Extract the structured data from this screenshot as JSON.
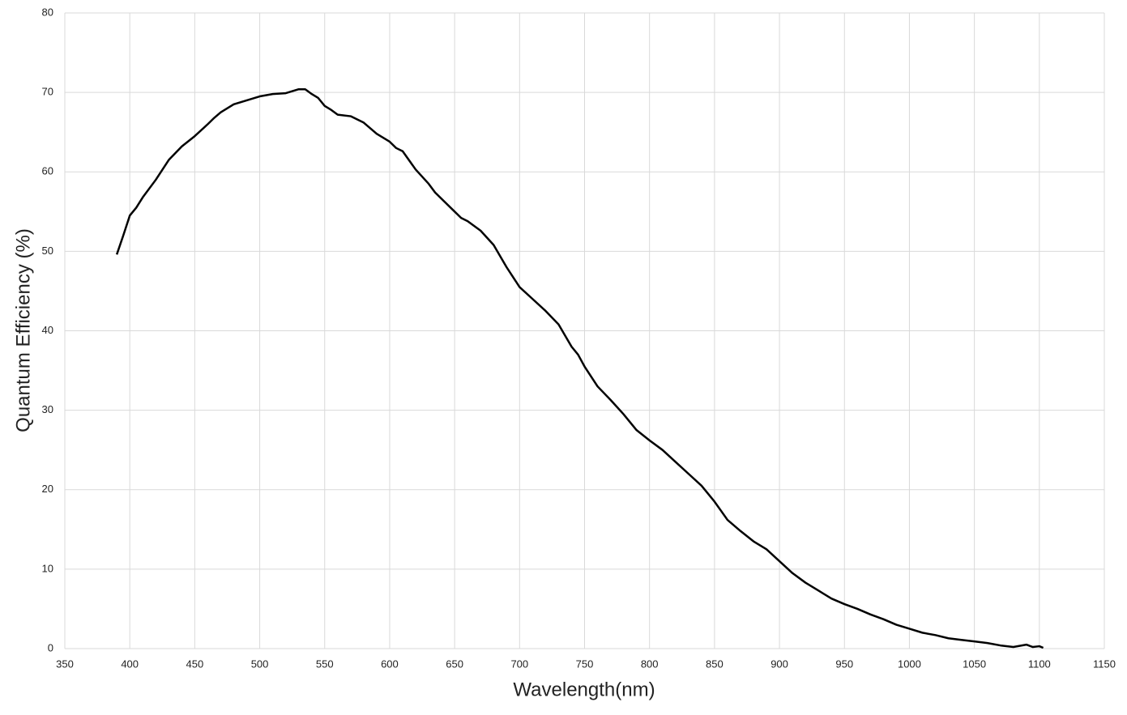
{
  "chart_data": {
    "type": "line",
    "x_label": "Wavelength(nm)",
    "y_label": "Quantum Efficiency (%)",
    "x": [
      390,
      395,
      400,
      405,
      410,
      420,
      430,
      440,
      450,
      460,
      465,
      470,
      480,
      490,
      500,
      510,
      520,
      530,
      535,
      540,
      545,
      550,
      555,
      560,
      570,
      580,
      590,
      600,
      605,
      610,
      620,
      630,
      635,
      640,
      650,
      655,
      660,
      670,
      680,
      690,
      700,
      710,
      720,
      730,
      740,
      745,
      750,
      760,
      770,
      780,
      790,
      800,
      810,
      820,
      830,
      840,
      850,
      860,
      870,
      880,
      890,
      900,
      910,
      920,
      930,
      940,
      950,
      960,
      970,
      980,
      990,
      1000,
      1010,
      1020,
      1030,
      1040,
      1050,
      1060,
      1070,
      1080,
      1090,
      1095,
      1100,
      1103
    ],
    "values": [
      49.6,
      52,
      54.5,
      55.5,
      56.8,
      59,
      61.5,
      63.2,
      64.5,
      66,
      66.8,
      67.5,
      68.5,
      69,
      69.5,
      69.8,
      69.9,
      70.4,
      70.4,
      69.8,
      69.3,
      68.3,
      67.8,
      67.2,
      67,
      66.2,
      64.8,
      63.8,
      63,
      62.6,
      60.3,
      58.5,
      57.4,
      56.6,
      55,
      54.2,
      53.8,
      52.6,
      50.8,
      48,
      45.5,
      44,
      42.5,
      40.8,
      38,
      37,
      35.5,
      33,
      31.3,
      29.5,
      27.5,
      26.2,
      25,
      23.5,
      22,
      20.5,
      18.5,
      16.2,
      14.8,
      13.5,
      12.5,
      11,
      9.5,
      8.3,
      7.3,
      6.3,
      5.6,
      5,
      4.3,
      3.7,
      3,
      2.5,
      2,
      1.7,
      1.3,
      1.1,
      0.9,
      0.7,
      0.4,
      0.2,
      0.5,
      0.2,
      0.3,
      0.1
    ],
    "color": "#000000",
    "xlim": [
      350,
      1150
    ],
    "xticks": [
      350,
      400,
      450,
      500,
      550,
      600,
      650,
      700,
      750,
      800,
      850,
      900,
      950,
      1000,
      1050,
      1100,
      1150
    ],
    "ylim": [
      0,
      80
    ],
    "yticks": [
      0,
      10,
      20,
      30,
      40,
      50,
      60,
      70,
      80
    ],
    "grid": true
  }
}
